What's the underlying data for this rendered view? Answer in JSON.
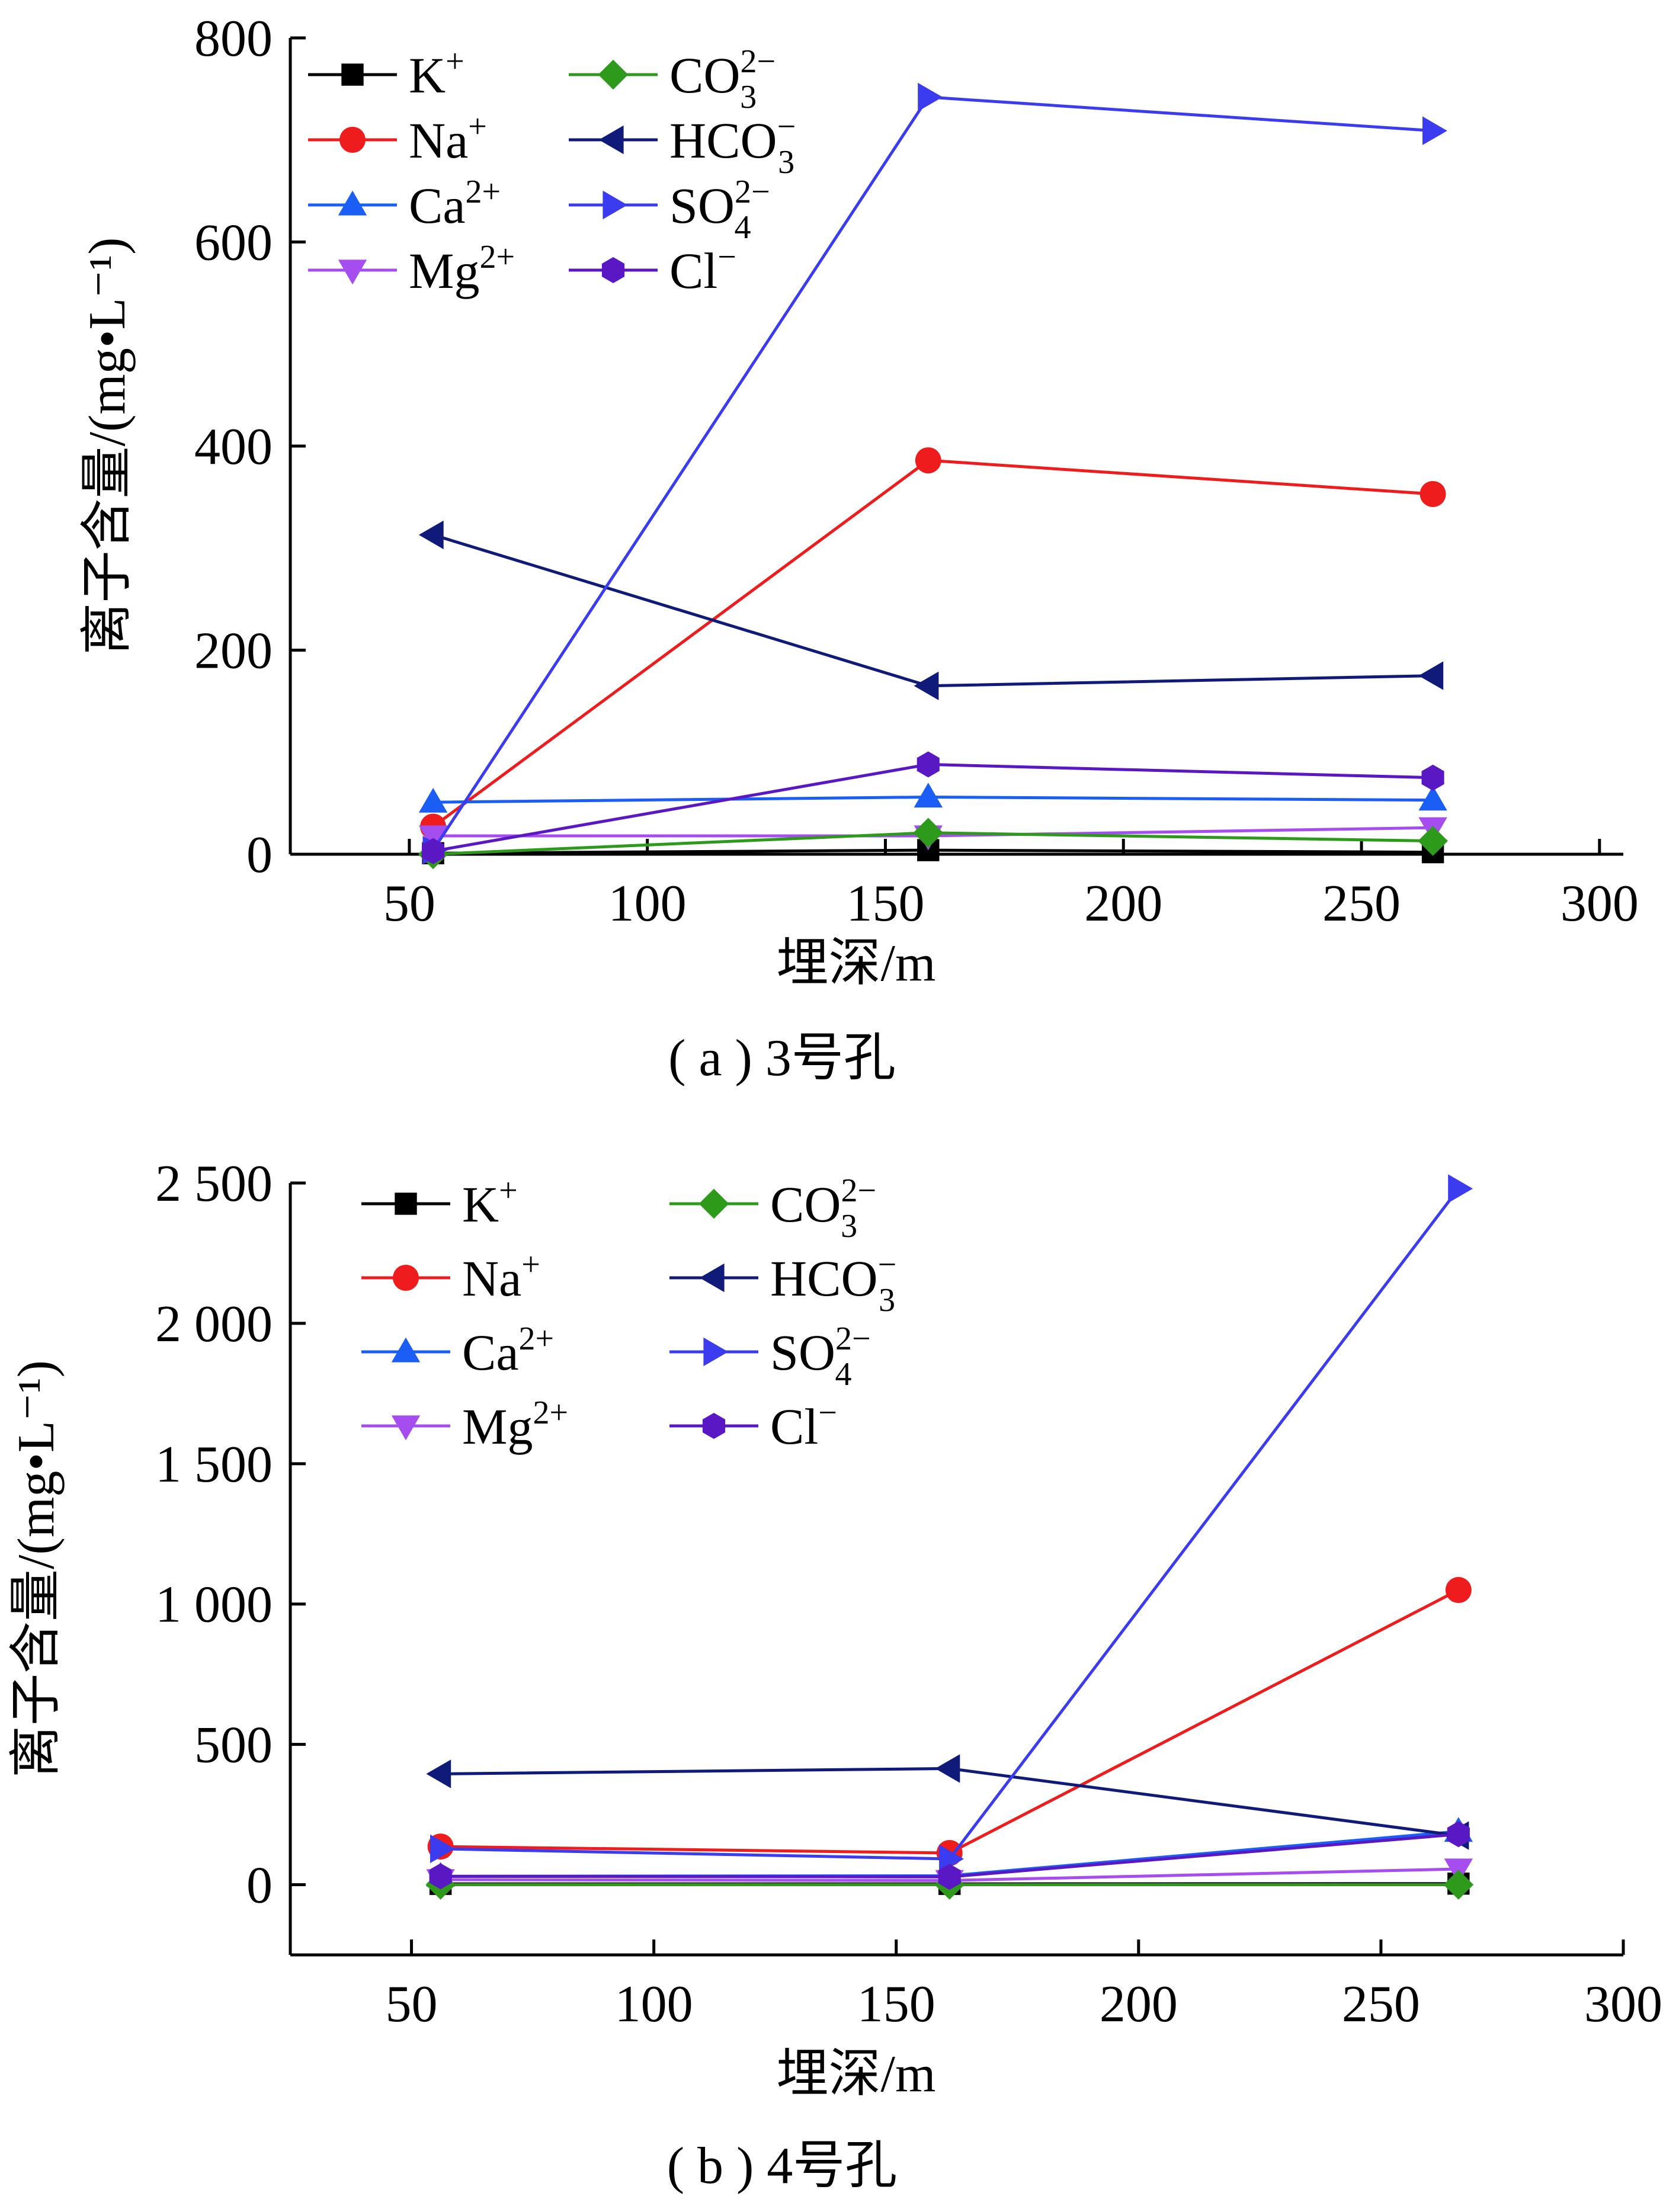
{
  "chart_data": [
    {
      "type": "line",
      "title": "",
      "caption": "( a ) 3号孔",
      "xlabel": "埋深/m",
      "ylabel": "离子含量/(mg•L⁻¹)",
      "xlim": [
        25,
        305
      ],
      "ylim": [
        0,
        800
      ],
      "xticks": [
        50,
        100,
        150,
        200,
        250,
        300
      ],
      "yticks": [
        0,
        200,
        400,
        600,
        800
      ],
      "ytick_labels": [
        "0",
        "200",
        "400",
        "600",
        "800"
      ],
      "x": [
        55,
        159,
        265
      ],
      "series": [
        {
          "name": "K⁺",
          "base": "K",
          "sup": "+",
          "sub": "",
          "color": "#000000",
          "marker": "square",
          "values": [
            1,
            4,
            2
          ]
        },
        {
          "name": "Na⁺",
          "base": "Na",
          "sup": "+",
          "sub": "",
          "color": "#ee1c1c",
          "marker": "circle",
          "values": [
            27,
            386,
            353
          ]
        },
        {
          "name": "Ca²⁺",
          "base": "Ca",
          "sup": "2+",
          "sub": "",
          "color": "#1b5ef5",
          "marker": "triangle-up",
          "values": [
            51,
            56,
            53
          ]
        },
        {
          "name": "Mg²⁺",
          "base": "Mg",
          "sup": "2+",
          "sub": "",
          "color": "#a64df0",
          "marker": "triangle-down",
          "values": [
            18,
            18,
            26
          ]
        },
        {
          "name": "CO₃²⁻",
          "base": "CO",
          "sup": "2−",
          "sub": "3",
          "color": "#2e9a1c",
          "marker": "diamond",
          "values": [
            0,
            21,
            13
          ]
        },
        {
          "name": "HCO₃⁻",
          "base": "HCO",
          "sup": "−",
          "sub": "3",
          "color": "#101a78",
          "marker": "triangle-left",
          "values": [
            313,
            165,
            175
          ]
        },
        {
          "name": "SO₄²⁻",
          "base": "SO",
          "sup": "2−",
          "sub": "4",
          "color": "#3b3bf0",
          "marker": "triangle-right",
          "values": [
            4,
            742,
            709
          ]
        },
        {
          "name": "Cl⁻",
          "base": "Cl",
          "sup": "−",
          "sub": "",
          "color": "#5a17c4",
          "marker": "hexagon",
          "values": [
            3,
            88,
            75
          ]
        }
      ]
    },
    {
      "type": "line",
      "title": "",
      "caption": "( b ) 4号孔",
      "xlabel": "埋深/m",
      "ylabel": "离子含量/(mg•L⁻¹)",
      "xlim": [
        25,
        300
      ],
      "ylim": [
        -250,
        2500
      ],
      "xticks": [
        50,
        100,
        150,
        200,
        250,
        300
      ],
      "yticks": [
        0,
        500,
        1000,
        1500,
        2000,
        2500
      ],
      "ytick_labels": [
        "0",
        "500",
        "1 000",
        "1 500",
        "2 000",
        "2 500"
      ],
      "x": [
        56,
        161,
        266
      ],
      "series": [
        {
          "name": "K⁺",
          "base": "K",
          "sup": "+",
          "sub": "",
          "color": "#000000",
          "marker": "square",
          "values": [
            3,
            3,
            4
          ]
        },
        {
          "name": "Na⁺",
          "base": "Na",
          "sup": "+",
          "sub": "",
          "color": "#ee1c1c",
          "marker": "circle",
          "values": [
            136,
            113,
            1050
          ]
        },
        {
          "name": "Ca²⁺",
          "base": "Ca",
          "sup": "2+",
          "sub": "",
          "color": "#1b5ef5",
          "marker": "triangle-up",
          "values": [
            30,
            32,
            190
          ]
        },
        {
          "name": "Mg²⁺",
          "base": "Mg",
          "sup": "2+",
          "sub": "",
          "color": "#a64df0",
          "marker": "triangle-down",
          "values": [
            18,
            15,
            56
          ]
        },
        {
          "name": "CO₃²⁻",
          "base": "CO",
          "sup": "2−",
          "sub": "3",
          "color": "#2e9a1c",
          "marker": "diamond",
          "values": [
            0,
            0,
            0
          ]
        },
        {
          "name": "HCO₃⁻",
          "base": "HCO",
          "sup": "−",
          "sub": "3",
          "color": "#101a78",
          "marker": "triangle-left",
          "values": [
            395,
            414,
            175
          ]
        },
        {
          "name": "SO₄²⁻",
          "base": "SO",
          "sup": "2−",
          "sub": "4",
          "color": "#3b3bf0",
          "marker": "triangle-right",
          "values": [
            128,
            92,
            2480
          ]
        },
        {
          "name": "Cl⁻",
          "base": "Cl",
          "sup": "−",
          "sub": "",
          "color": "#5a17c4",
          "marker": "hexagon",
          "values": [
            30,
            28,
            180
          ]
        }
      ]
    }
  ]
}
